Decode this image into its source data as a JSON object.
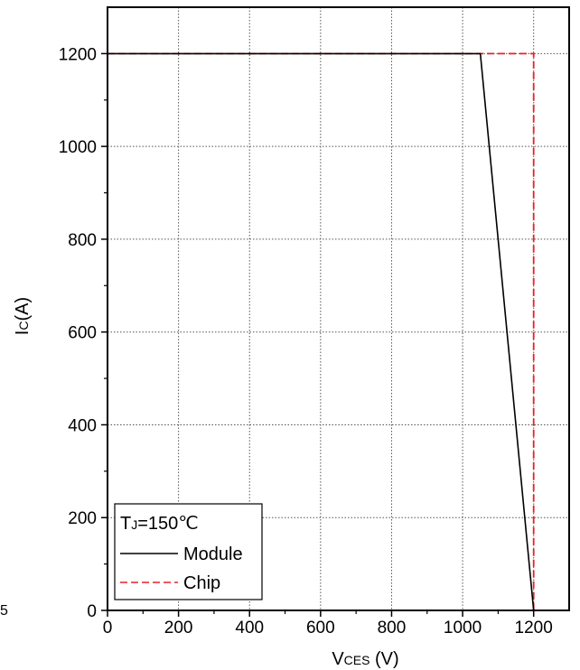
{
  "chart_data": {
    "type": "line",
    "title": "",
    "xlabel": {
      "main": "V",
      "sub": "CES",
      "suffix": " (V)"
    },
    "ylabel": {
      "main": "I",
      "sub": "C",
      "suffix": "(A)"
    },
    "xlim": [
      0,
      1300
    ],
    "ylim": [
      0,
      1300
    ],
    "xticks": [
      0,
      200,
      400,
      600,
      800,
      1000,
      1200
    ],
    "yticks": [
      0,
      200,
      400,
      600,
      800,
      1000,
      1200
    ],
    "grid": true,
    "legend": {
      "placement": "bottom-left",
      "title": {
        "main": "T",
        "sub": "J",
        "suffix": "=150℃"
      },
      "entries": [
        "Module",
        "Chip"
      ]
    },
    "series": [
      {
        "name": "Module",
        "color": "#000000",
        "style": "solid",
        "points": [
          [
            0,
            1200
          ],
          [
            1050,
            1200
          ],
          [
            1200,
            0
          ]
        ]
      },
      {
        "name": "Chip",
        "color": "#e8202a",
        "style": "dashed",
        "points": [
          [
            0,
            1200
          ],
          [
            1200,
            1200
          ],
          [
            1200,
            0
          ]
        ]
      }
    ],
    "edge_label": "5"
  }
}
